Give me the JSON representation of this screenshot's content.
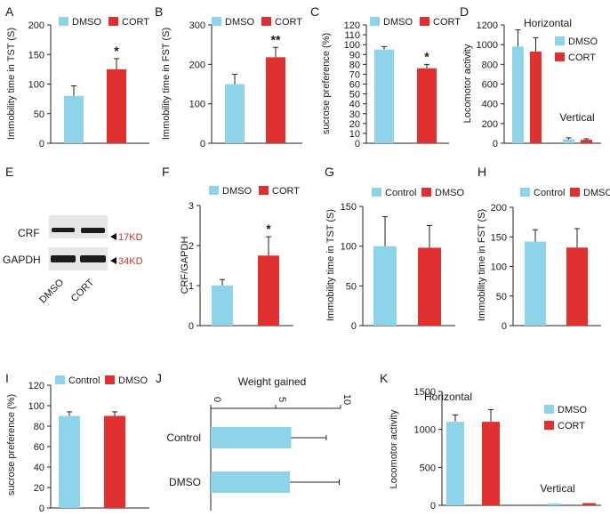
{
  "colors": {
    "dmso_bar": "#8dd3ea",
    "cort_bar": "#e03030",
    "control_bar": "#8dd3ea",
    "marker_red": "#c0392b"
  },
  "chart_data": [
    {
      "id": "A",
      "panel_label": "A",
      "type": "bar",
      "ylabel": "Immobility time in TST (S)",
      "ylim": [
        0,
        200
      ],
      "yticks": [
        "0",
        "50",
        "100",
        "150",
        "200"
      ],
      "legend": [
        "DMSO",
        "CORT"
      ],
      "series": [
        {
          "name": "DMSO",
          "value": 80,
          "error": 17,
          "color": "#8dd3ea"
        },
        {
          "name": "CORT",
          "value": 125,
          "error": 18,
          "color": "#e03030"
        }
      ],
      "significance": "*"
    },
    {
      "id": "B",
      "panel_label": "B",
      "type": "bar",
      "ylabel": "Immobility time in FST (S)",
      "ylim": [
        0,
        300
      ],
      "yticks": [
        "0",
        "100",
        "200",
        "300"
      ],
      "legend": [
        "DMSO",
        "CORT"
      ],
      "series": [
        {
          "name": "DMSO",
          "value": 150,
          "error": 25,
          "color": "#8dd3ea"
        },
        {
          "name": "CORT",
          "value": 218,
          "error": 25,
          "color": "#e03030"
        }
      ],
      "significance": "**"
    },
    {
      "id": "C",
      "panel_label": "C",
      "type": "bar",
      "ylabel": "sucrose preference (%)",
      "ylim": [
        0,
        120
      ],
      "yticks": [
        "0",
        "10",
        "20",
        "30",
        "40",
        "50",
        "60",
        "70",
        "80",
        "90",
        "100",
        "110",
        "120"
      ],
      "legend": [
        "DMSO",
        "CORT"
      ],
      "series": [
        {
          "name": "DMSO",
          "value": 95,
          "error": 3,
          "color": "#8dd3ea"
        },
        {
          "name": "CORT",
          "value": 76,
          "error": 4,
          "color": "#e03030"
        }
      ],
      "significance": "*"
    },
    {
      "id": "D",
      "panel_label": "D",
      "type": "bar",
      "ylabel": "Locomotor activity",
      "ylim": [
        0,
        1200
      ],
      "yticks": [
        "0",
        "200",
        "400",
        "600",
        "800",
        "1000",
        "1200"
      ],
      "legend": [
        "DMSO",
        "CORT"
      ],
      "groups": [
        {
          "label": "Horizontal",
          "series": [
            {
              "name": "DMSO",
              "value": 980,
              "error": 170,
              "color": "#8dd3ea"
            },
            {
              "name": "CORT",
              "value": 930,
              "error": 140,
              "color": "#e03030"
            }
          ]
        },
        {
          "label": "Vertical",
          "series": [
            {
              "name": "DMSO",
              "value": 40,
              "error": 15,
              "color": "#8dd3ea"
            },
            {
              "name": "CORT",
              "value": 35,
              "error": 10,
              "color": "#e03030"
            }
          ]
        }
      ]
    },
    {
      "id": "F",
      "panel_label": "F",
      "type": "bar",
      "ylabel": "CRF/GAPDH",
      "ylim": [
        0,
        3
      ],
      "yticks": [
        "0",
        "1",
        "2",
        "3"
      ],
      "legend": [
        "DMSO",
        "CORT"
      ],
      "series": [
        {
          "name": "DMSO",
          "value": 1.0,
          "error": 0.15,
          "color": "#8dd3ea"
        },
        {
          "name": "CORT",
          "value": 1.75,
          "error": 0.47,
          "color": "#e03030"
        }
      ],
      "significance": "*"
    },
    {
      "id": "G",
      "panel_label": "G",
      "type": "bar",
      "ylabel": "Immobility time in TST (S)",
      "ylim": [
        0,
        150
      ],
      "yticks": [
        "0",
        "50",
        "100",
        "150"
      ],
      "legend": [
        "Control",
        "DMSO"
      ],
      "series": [
        {
          "name": "Control",
          "value": 100,
          "error": 37,
          "color": "#8dd3ea"
        },
        {
          "name": "DMSO",
          "value": 98,
          "error": 28,
          "color": "#e03030"
        }
      ]
    },
    {
      "id": "H",
      "panel_label": "H",
      "type": "bar",
      "ylabel": "Immobility time in FST (S)",
      "ylim": [
        0,
        200
      ],
      "yticks": [
        "0",
        "50",
        "100",
        "150",
        "200"
      ],
      "legend": [
        "Control",
        "DMSO"
      ],
      "series": [
        {
          "name": "Control",
          "value": 142,
          "error": 20,
          "color": "#8dd3ea"
        },
        {
          "name": "DMSO",
          "value": 132,
          "error": 32,
          "color": "#e03030"
        }
      ]
    },
    {
      "id": "I",
      "panel_label": "I",
      "type": "bar",
      "ylabel": "sucrose preference (%)",
      "ylim": [
        0,
        120
      ],
      "yticks": [
        "0",
        "20",
        "40",
        "60",
        "80",
        "100",
        "120"
      ],
      "legend": [
        "Control",
        "DMSO"
      ],
      "series": [
        {
          "name": "Control",
          "value": 90,
          "error": 4,
          "color": "#8dd3ea"
        },
        {
          "name": "DMSO",
          "value": 90,
          "error": 4,
          "color": "#e03030"
        }
      ]
    },
    {
      "id": "J",
      "panel_label": "J",
      "type": "bar",
      "orientation": "horizontal",
      "title": "Weight gained",
      "xlim": [
        0,
        10
      ],
      "xticks": [
        "0",
        "5",
        "10"
      ],
      "series": [
        {
          "name": "Control",
          "value": 6.2,
          "error": 2.7,
          "color": "#8dd3ea"
        },
        {
          "name": "DMSO",
          "value": 6.1,
          "error": 3.8,
          "color": "#8dd3ea"
        }
      ]
    },
    {
      "id": "K",
      "panel_label": "K",
      "type": "bar",
      "ylabel": "Locomotor activity",
      "ylim": [
        0,
        1500
      ],
      "yticks": [
        "0",
        "500",
        "1000",
        "1500"
      ],
      "legend": [
        "DMSO",
        "CORT"
      ],
      "groups": [
        {
          "label": "Horizontal",
          "series": [
            {
              "name": "DMSO",
              "value": 1100,
              "error": 90,
              "color": "#8dd3ea"
            },
            {
              "name": "CORT",
              "value": 1100,
              "error": 160,
              "color": "#e03030"
            }
          ]
        },
        {
          "label": "Vertical",
          "series": [
            {
              "name": "DMSO",
              "value": 25,
              "error": 0,
              "color": "#8dd3ea"
            },
            {
              "name": "CORT",
              "value": 30,
              "error": 0,
              "color": "#e03030"
            }
          ]
        }
      ]
    }
  ],
  "blot": {
    "panel_label": "E",
    "rows": [
      {
        "label": "CRF",
        "marker": "17KD"
      },
      {
        "label": "GAPDH",
        "marker": "34KD"
      }
    ],
    "lanes": [
      "DMSO",
      "CORT"
    ]
  }
}
